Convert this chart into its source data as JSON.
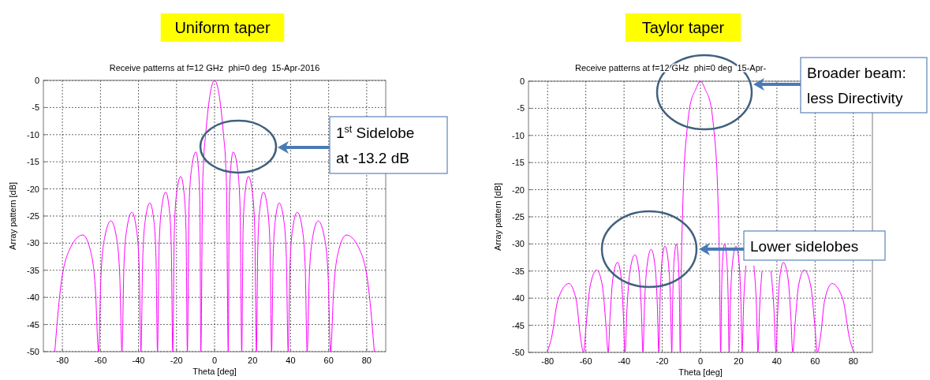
{
  "chart_data": [
    {
      "type": "line",
      "title": "Uniform taper",
      "subtitle": "Receive patterns at f=12 GHz  phi=0 deg  15-Apr-2016",
      "xlabel": "Theta [deg]",
      "ylabel": "Array pattern [dB]",
      "xlim": [
        -90,
        90
      ],
      "ylim": [
        -50,
        0
      ],
      "xticks": [
        -80,
        -60,
        -40,
        -20,
        0,
        20,
        40,
        60,
        80
      ],
      "yticks": [
        -50,
        -45,
        -40,
        -35,
        -30,
        -25,
        -20,
        -15,
        -10,
        -5,
        0
      ],
      "grid": true,
      "series": [
        {
          "color": "#ff00ff",
          "x": [
            -84,
            -81.05,
            -76.65,
            -69.3,
            -65.15,
            -62.65,
            -61,
            -59.7,
            -57.75,
            -54.5,
            -51.6,
            -49.85,
            -48.7,
            -47.65,
            -46.1,
            -43.5,
            -41.1,
            -39.65,
            -38.7,
            -37.75,
            -36.35,
            -34,
            -32,
            -30.8,
            -30,
            -29.15,
            -27.85,
            -25.7,
            -23.85,
            -22.75,
            -22,
            -21.15,
            -19.9,
            -17.8,
            -16.05,
            -15.0,
            -14.3,
            -13.4,
            -12.05,
            -9.8,
            -8.5,
            -7.7,
            -7.2,
            -6.3,
            -5.8,
            -4.7,
            -3.3,
            -1.8,
            0,
            1.8,
            3.3,
            4.7,
            5.8,
            6.3,
            7.2,
            7.7,
            8.5,
            9.8,
            12.05,
            13.4,
            14.3,
            15.0,
            16.05,
            17.8,
            19.9,
            21.15,
            22,
            22.75,
            23.85,
            25.7,
            27.85,
            29.15,
            30,
            30.8,
            32,
            34,
            36.35,
            37.75,
            38.7,
            39.65,
            41.1,
            43.5,
            46.1,
            47.65,
            48.7,
            49.85,
            51.6,
            54.5,
            57.75,
            59.7,
            61,
            62.65,
            65.15,
            69.3,
            76.65,
            81.05,
            84
          ],
          "values": [
            -50,
            -38.5,
            -31.5,
            -28.5,
            -31.5,
            -38.5,
            -50,
            -35.9,
            -28.9,
            -25.9,
            -28.9,
            -35.9,
            -50,
            -34.3,
            -27.3,
            -24.3,
            -27.3,
            -34.3,
            -50,
            -32.6,
            -25.6,
            -22.6,
            -25.6,
            -32.6,
            -50,
            -30.6,
            -23.6,
            -20.6,
            -23.6,
            -30.6,
            -50,
            -27.7,
            -20.7,
            -17.7,
            -20.7,
            -27.7,
            -50,
            -23.2,
            -16.2,
            -13.2,
            -16.2,
            -23.2,
            -50,
            -20,
            -15,
            -10,
            -5,
            -1.5,
            0,
            -1.5,
            -5,
            -10,
            -15,
            -20,
            -50,
            -23.2,
            -16.2,
            -13.2,
            -16.2,
            -23.2,
            -50,
            -27.7,
            -20.7,
            -17.7,
            -20.7,
            -27.7,
            -50,
            -30.6,
            -23.6,
            -20.6,
            -23.6,
            -30.6,
            -50,
            -32.6,
            -25.6,
            -22.6,
            -25.6,
            -32.6,
            -50,
            -34.3,
            -27.3,
            -24.3,
            -27.3,
            -34.3,
            -50,
            -35.9,
            -28.9,
            -25.9,
            -28.9,
            -35.9,
            -50,
            -38.5,
            -31.5,
            -28.5,
            -31.5,
            -38.5,
            -50
          ]
        }
      ],
      "annotations": [
        "1$^{st}$ Sidelobe at -13.2 dB"
      ]
    },
    {
      "type": "line",
      "title": "Taylor taper",
      "subtitle": "Receive patterns at f=12 GHz  phi=0 deg  15-Apr-",
      "xlabel": "Theta [deg]",
      "ylabel": "Array pattern [dB]",
      "xlim": [
        -90,
        90
      ],
      "ylim": [
        -50,
        0
      ],
      "xticks": [
        -80,
        -60,
        -40,
        -20,
        0,
        20,
        40,
        60,
        80
      ],
      "yticks": [
        -50,
        -45,
        -40,
        -35,
        -30,
        -25,
        -20,
        -15,
        -10,
        -5,
        0
      ],
      "grid": true,
      "series": [
        {
          "color": "#ff00ff",
          "x": [
            -80.3,
            -77.95,
            -74.6,
            -68.9,
            -65.05,
            -62.75,
            -61.2,
            -59.8,
            -57.75,
            -54.3,
            -51.3,
            -49.5,
            -48.3,
            -47.3,
            -45.85,
            -43.4,
            -41.45,
            -40.3,
            -39.5,
            -38.45,
            -36.9,
            -34.3,
            -32.2,
            -30.95,
            -30.1,
            -29.25,
            -27.95,
            -25.8,
            -23.8,
            -22.6,
            -21.8,
            -21.15,
            -20.2,
            -18.6,
            -16.8,
            -15.7,
            -15,
            -14.5,
            -13.8,
            -12.6,
            -11.6,
            -11.0,
            -10.6,
            -9.8,
            -9.4,
            -9.0,
            -8.4,
            -7.3,
            -5.7,
            -2.5,
            0,
            2.5,
            5.7,
            7.3,
            8.4,
            9.0,
            9.4,
            9.8,
            10.6,
            11.0,
            11.6,
            12.6,
            13.8,
            14.5,
            15,
            15.7,
            16.8,
            18.6,
            20.2,
            21.15,
            21.8,
            22.6,
            23.8,
            25.8,
            27.95,
            29.25,
            30.1,
            30.95,
            32.2,
            34.3,
            36.9,
            38.45,
            39.5,
            40.3,
            41.45,
            43.4,
            45.85,
            47.3,
            48.3,
            49.5,
            51.3,
            54.3,
            57.75,
            59.8,
            61.2,
            62.75,
            65.05,
            68.9,
            74.6,
            77.95,
            80.3
          ],
          "values": [
            -50,
            -47.3,
            -40.3,
            -37.3,
            -40.3,
            -47.3,
            -50,
            -44.8,
            -37.8,
            -34.8,
            -37.8,
            -44.8,
            -50,
            -43.4,
            -36.4,
            -33.4,
            -36.4,
            -43.4,
            -50,
            -42,
            -35,
            -32,
            -35,
            -42,
            -50,
            -41,
            -34,
            -31,
            -34,
            -41,
            -50,
            -40.4,
            -33.4,
            -30.4,
            -33.4,
            -40.4,
            -50,
            -40,
            -33,
            -30,
            -33,
            -40,
            -50,
            -30,
            -25,
            -20,
            -15,
            -10,
            -5,
            -1.5,
            0,
            -1.5,
            -5,
            -10,
            -15,
            -20,
            -25,
            -30,
            -50,
            -40,
            -33,
            -30,
            -33,
            -40,
            -50,
            -40.4,
            -33.4,
            -30.4,
            -33.4,
            -40.4,
            -50,
            -41,
            -34,
            null,
            -34,
            -41,
            -50,
            -42,
            -35,
            null,
            -35,
            -42,
            -50,
            -43.4,
            -36.4,
            -33.4,
            -36.4,
            -43.4,
            -50,
            -44.8,
            -37.8,
            -34.8,
            -37.8,
            -44.8,
            -50,
            -47.3,
            -40.3,
            -37.3,
            -40.3,
            -47.3,
            -50
          ]
        }
      ],
      "annotations": [
        "Broader beam: less Directivity",
        "Lower sidelobes"
      ]
    }
  ]
}
